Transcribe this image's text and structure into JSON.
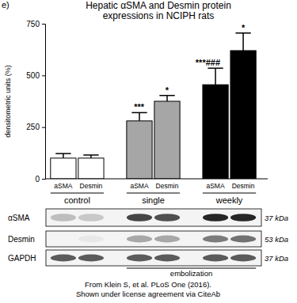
{
  "chart_data": {
    "type": "bar",
    "panel_label": "e)",
    "title": [
      "Hepatic αSMA and Desmin protein",
      "expressions in NCIPH rats"
    ],
    "ylabel": "densitometric units (%)",
    "categories": [
      "aSMA",
      "Desmin",
      "aSMA",
      "Desmin",
      "aSMA",
      "Desmin"
    ],
    "groups": [
      "control",
      "single",
      "weekly"
    ],
    "values": [
      100,
      100,
      280,
      375,
      455,
      620
    ],
    "errors": [
      22,
      15,
      40,
      28,
      80,
      85
    ],
    "annotations": [
      null,
      null,
      "***",
      "*",
      "***###",
      "*"
    ],
    "colors": [
      "#ffffff",
      "#ffffff",
      "#a6a6a6",
      "#a6a6a6",
      "#000000",
      "#000000"
    ],
    "ylim": [
      0,
      750
    ],
    "yticks": [
      0,
      250,
      500,
      750
    ],
    "blot": {
      "rows": [
        {
          "label": "αSMA",
          "size": "37 kDa"
        },
        {
          "label": "Desmin",
          "size": "53 kDa"
        },
        {
          "label": "GAPDH",
          "size": "37 kDa"
        }
      ],
      "treatment_label": "embolization"
    },
    "source": [
      "From Klein S, et al. PLoS One (2016).",
      "Shown under license agreement via CiteAb"
    ]
  }
}
